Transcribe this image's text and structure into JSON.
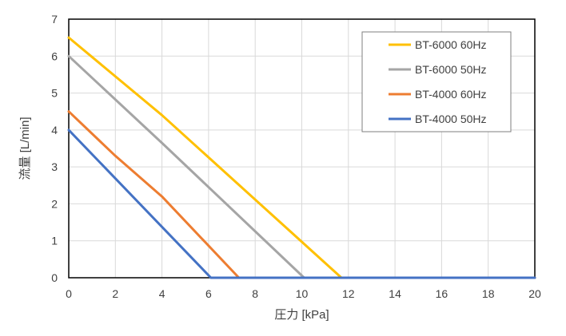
{
  "chart_data": {
    "type": "line",
    "title": "",
    "xlabel": "圧力 [kPa]",
    "ylabel": "流量 [L/min]",
    "xlim": [
      0,
      20
    ],
    "ylim": [
      0,
      7
    ],
    "xticks": [
      0,
      2,
      4,
      6,
      8,
      10,
      12,
      14,
      16,
      18,
      20
    ],
    "yticks": [
      0,
      1,
      2,
      3,
      4,
      5,
      6,
      7
    ],
    "grid": true,
    "legend_position": "top-right",
    "series": [
      {
        "name": "BT-6000 60Hz",
        "color": "#FFC000",
        "x": [
          0,
          4,
          11.7,
          20
        ],
        "y": [
          6.5,
          4.4,
          0,
          0
        ]
      },
      {
        "name": "BT-6000 50Hz",
        "color": "#A5A5A5",
        "x": [
          0,
          4,
          10.1,
          20
        ],
        "y": [
          6.0,
          3.65,
          0,
          0
        ]
      },
      {
        "name": "BT-4000 60Hz",
        "color": "#ED7D31",
        "x": [
          0,
          2,
          4,
          7.3,
          20
        ],
        "y": [
          4.5,
          3.3,
          2.2,
          0,
          0
        ]
      },
      {
        "name": "BT-4000 50Hz",
        "color": "#4472C4",
        "x": [
          0,
          6.1,
          20
        ],
        "y": [
          4.0,
          0,
          0
        ]
      }
    ]
  }
}
